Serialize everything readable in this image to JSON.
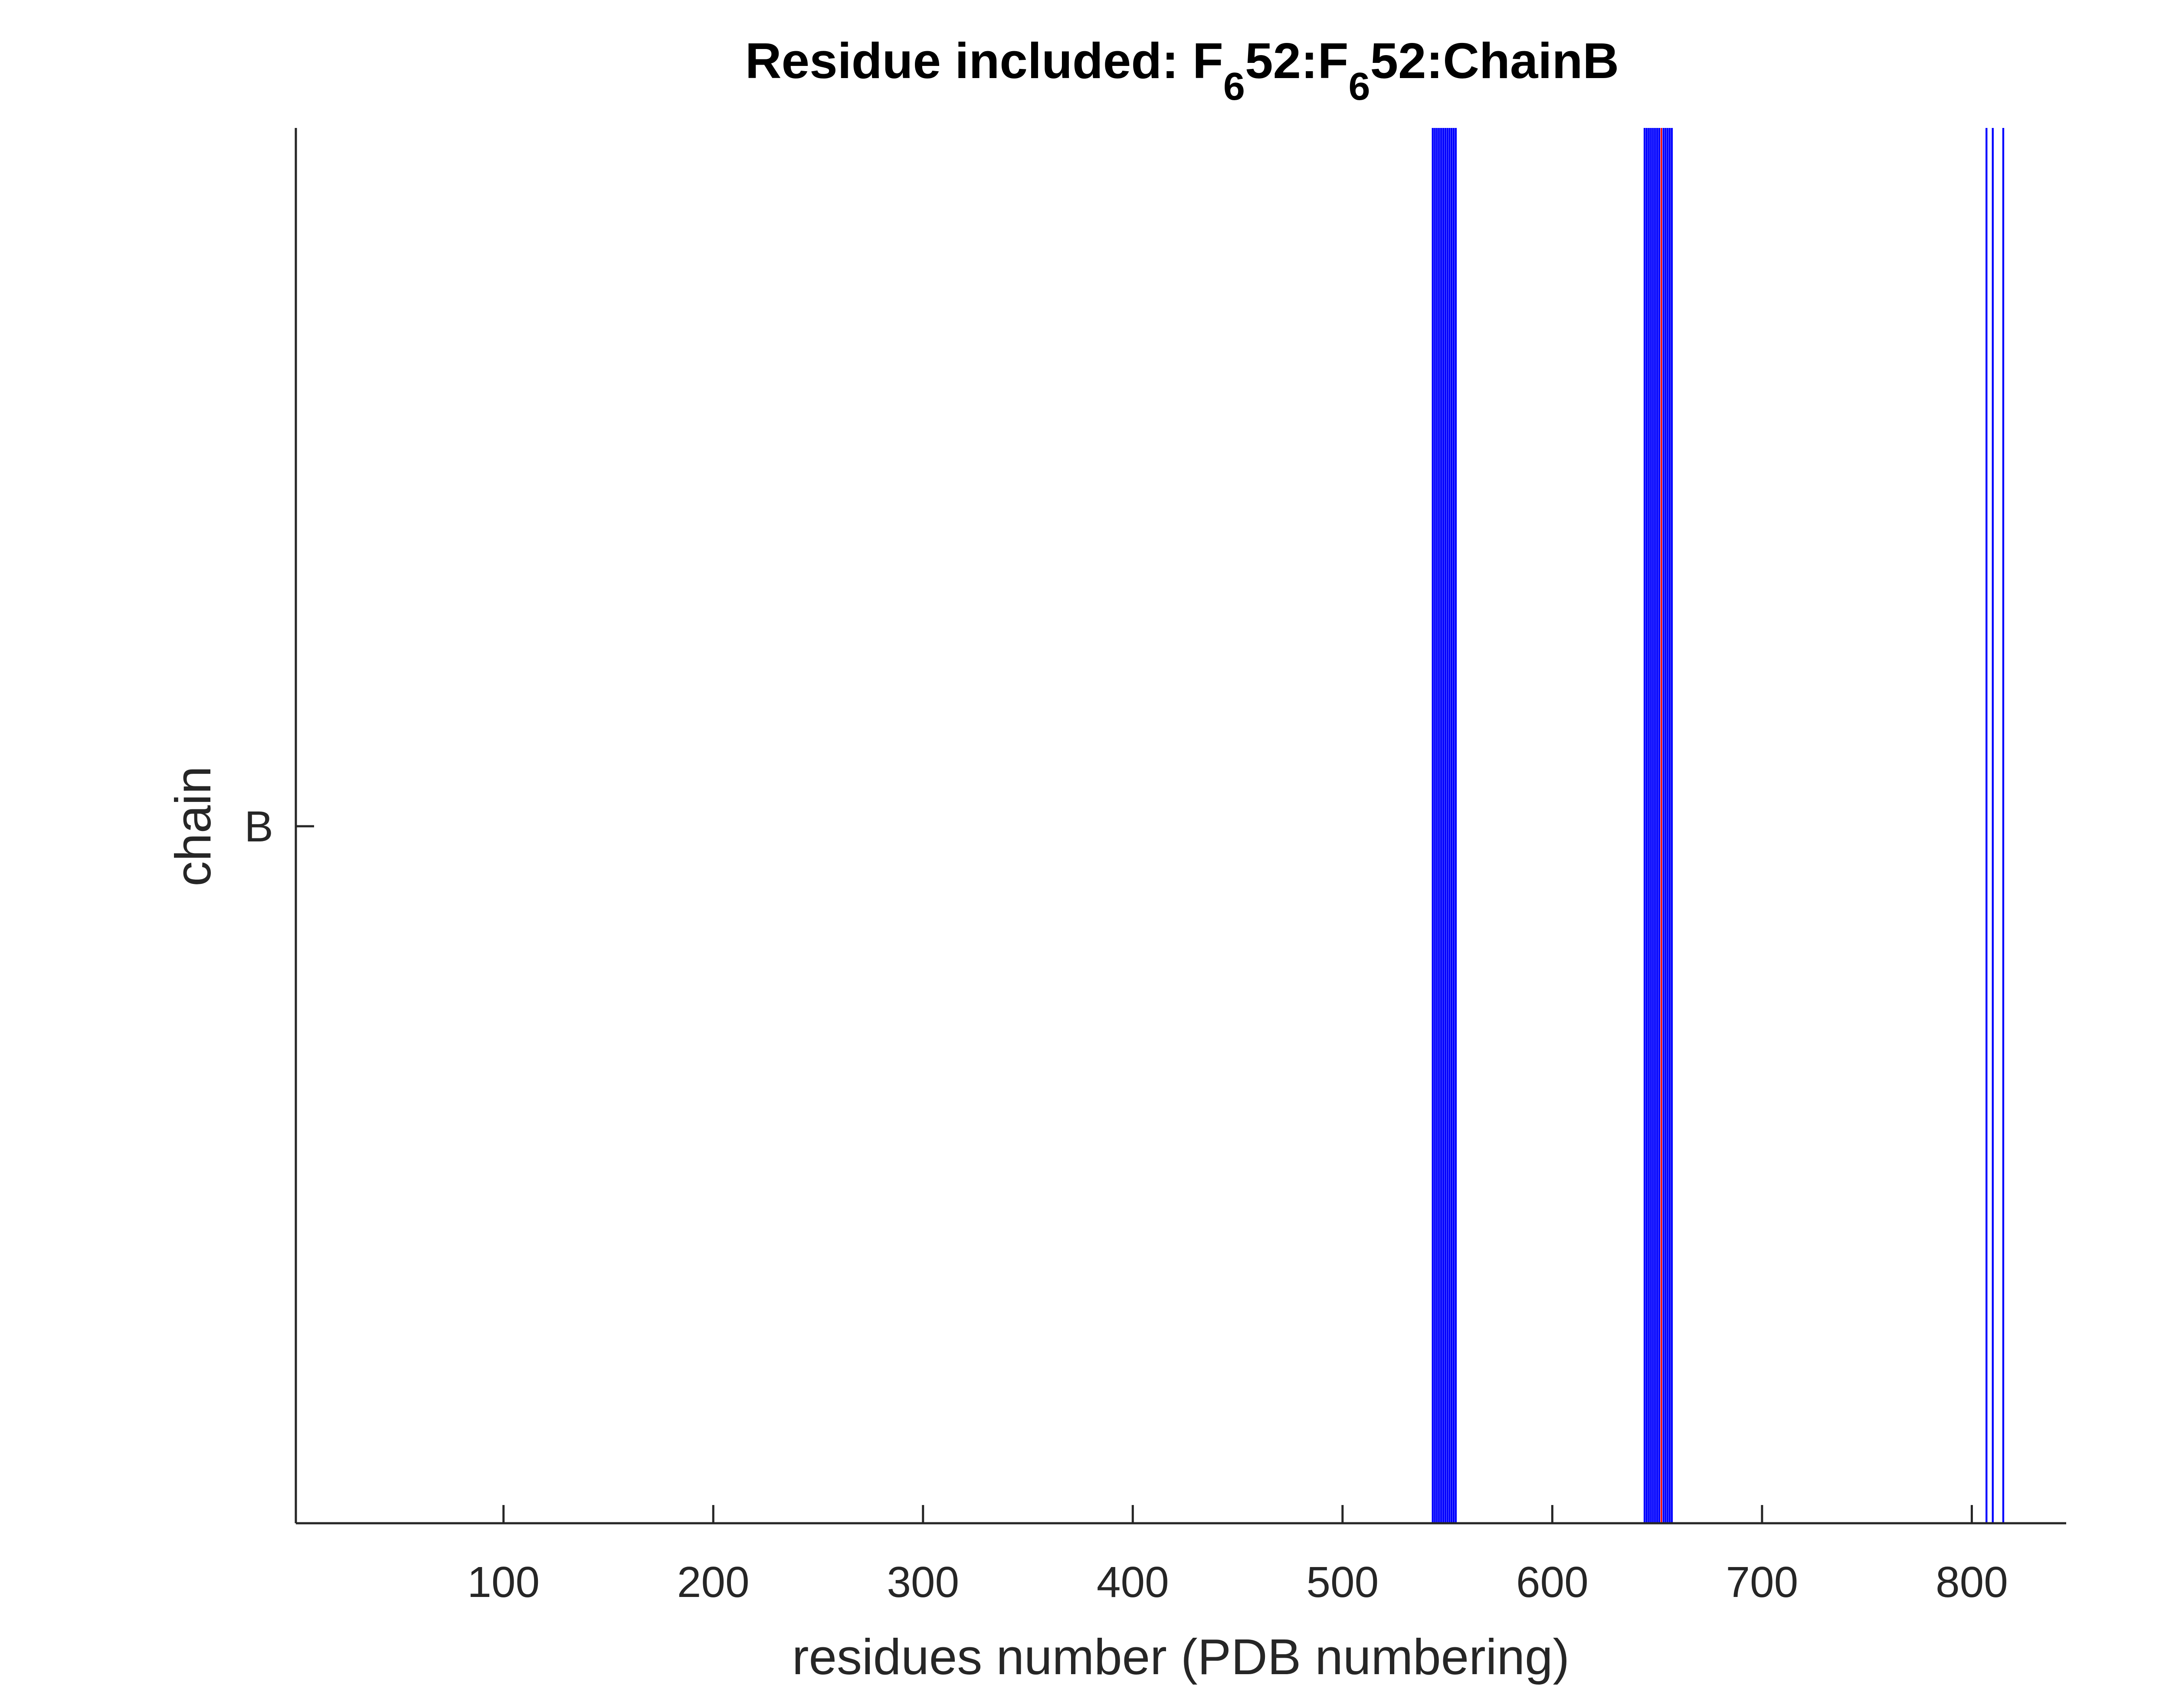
{
  "chart_data": {
    "type": "bar",
    "title": {
      "part1": "Residue included: F",
      "sub1": "6",
      "part2": "52:F",
      "sub2": "6",
      "part3": "52:ChainB"
    },
    "xlabel": "residues number (PDB numbering)",
    "ylabel": "chain",
    "xlim": [
      1,
      845
    ],
    "xticks": [
      100,
      200,
      300,
      400,
      500,
      600,
      700,
      800
    ],
    "yticks": [
      "B"
    ],
    "grid": false,
    "legend": "none",
    "colors": {
      "residue": "#0000ff",
      "selected": "#ff0000",
      "axis": "#262626"
    },
    "residues": [
      543,
      544,
      545,
      546,
      547,
      548,
      549,
      550,
      551,
      552,
      553,
      554,
      644,
      645,
      646,
      647,
      648,
      649,
      650,
      651,
      653,
      654,
      655,
      656,
      657,
      807,
      810,
      815
    ],
    "selected_residue": 652
  }
}
